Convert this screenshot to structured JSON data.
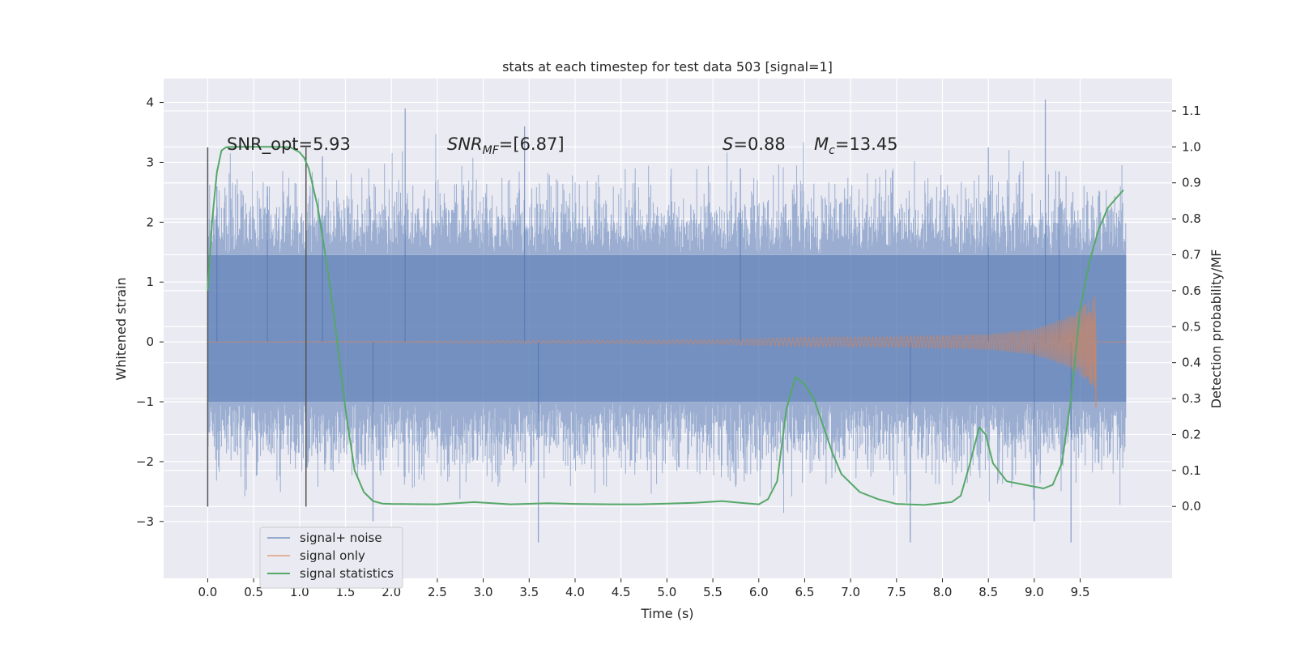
{
  "chart_data": {
    "type": "line",
    "title": "stats at each timestep for test data 503 [signal=1]",
    "xlabel": "Time (s)",
    "ylabel": "Whitened strain",
    "y2label": "Detection probability/MF",
    "xlim": [
      -0.48,
      10.5
    ],
    "ylim": [
      -3.95,
      4.4
    ],
    "y2lim": [
      -0.2,
      1.19
    ],
    "x_ticks": [
      "0.0",
      "0.5",
      "1.0",
      "1.5",
      "2.0",
      "2.5",
      "3.0",
      "3.5",
      "4.0",
      "4.5",
      "5.0",
      "5.5",
      "6.0",
      "6.5",
      "7.0",
      "7.5",
      "8.0",
      "8.5",
      "9.0",
      "9.5"
    ],
    "y_ticks": [
      "−3",
      "−2",
      "−1",
      "0",
      "1",
      "2",
      "3",
      "4"
    ],
    "y2_ticks": [
      "0.0",
      "0.1",
      "0.2",
      "0.3",
      "0.4",
      "0.5",
      "0.6",
      "0.7",
      "0.8",
      "0.9",
      "1.0",
      "1.1"
    ],
    "grid": true,
    "legend_position": "lower-left",
    "colors": {
      "background": "#eaeaf2",
      "noise": "#4c72b0",
      "signal": "#dd8452",
      "stats": "#55a868",
      "vline": "#555555"
    },
    "annotations": {
      "snr_opt": "SNR_opt=5.93",
      "snr_mf_main": "SNR",
      "snr_mf_sub": "MF",
      "snr_mf_val": "=[6.87]",
      "s_main": "S",
      "s_val": "=0.88",
      "mc_main": "M",
      "mc_sub": "c",
      "mc_val": "=13.45"
    },
    "vlines": [
      0.0,
      1.07
    ],
    "series": [
      {
        "name": "signal+ noise",
        "envelope": {
          "dense_band": [
            -1.0,
            1.45
          ],
          "typical_peaks": [
            -2.5,
            2.9
          ],
          "extreme_peaks": [
            [
              0.1,
              2.6
            ],
            [
              0.65,
              2.6
            ],
            [
              1.25,
              3.1
            ],
            [
              2.15,
              3.9
            ],
            [
              3.45,
              3.6
            ],
            [
              5.8,
              2.9
            ],
            [
              8.5,
              3.25
            ],
            [
              9.12,
              4.05
            ],
            [
              9.27,
              2.85
            ],
            [
              1.8,
              -3.0
            ],
            [
              3.6,
              -3.35
            ],
            [
              7.65,
              -3.35
            ],
            [
              9.0,
              -3.0
            ],
            [
              9.4,
              -3.35
            ]
          ]
        }
      },
      {
        "name": "signal only",
        "amplitude_envelope": [
          [
            0.0,
            0.0
          ],
          [
            5.5,
            0.04
          ],
          [
            6.5,
            0.08
          ],
          [
            7.5,
            0.09
          ],
          [
            8.5,
            0.13
          ],
          [
            9.0,
            0.22
          ],
          [
            9.3,
            0.38
          ],
          [
            9.5,
            0.55
          ],
          [
            9.6,
            0.7
          ],
          [
            9.67,
            0.8
          ],
          [
            9.69,
            0.0
          ],
          [
            10.0,
            0.0
          ]
        ],
        "dips": [
          [
            9.67,
            -1.1
          ]
        ]
      },
      {
        "name": "signal statistics",
        "x": [
          0.0,
          0.05,
          0.1,
          0.15,
          0.2,
          0.3,
          0.5,
          0.7,
          0.9,
          1.0,
          1.05,
          1.1,
          1.2,
          1.3,
          1.4,
          1.5,
          1.6,
          1.7,
          1.8,
          1.9,
          2.0,
          2.5,
          2.9,
          3.3,
          3.7,
          4.0,
          4.4,
          4.7,
          5.0,
          5.3,
          5.6,
          5.8,
          6.0,
          6.1,
          6.2,
          6.3,
          6.4,
          6.5,
          6.6,
          6.8,
          6.9,
          7.1,
          7.3,
          7.5,
          7.8,
          8.1,
          8.2,
          8.3,
          8.4,
          8.47,
          8.55,
          8.7,
          8.9,
          9.1,
          9.2,
          9.3,
          9.4,
          9.5,
          9.6,
          9.7,
          9.8,
          9.9,
          9.97
        ],
        "values": [
          0.6,
          0.8,
          0.93,
          0.99,
          0.999,
          1.0,
          1.0,
          1.0,
          0.999,
          0.985,
          0.97,
          0.94,
          0.83,
          0.67,
          0.48,
          0.27,
          0.1,
          0.04,
          0.015,
          0.008,
          0.007,
          0.006,
          0.012,
          0.006,
          0.009,
          0.007,
          0.006,
          0.006,
          0.008,
          0.01,
          0.015,
          0.01,
          0.006,
          0.02,
          0.07,
          0.27,
          0.36,
          0.34,
          0.3,
          0.15,
          0.09,
          0.04,
          0.02,
          0.007,
          0.004,
          0.012,
          0.03,
          0.12,
          0.22,
          0.2,
          0.12,
          0.07,
          0.06,
          0.05,
          0.06,
          0.12,
          0.3,
          0.55,
          0.68,
          0.77,
          0.83,
          0.86,
          0.88
        ]
      }
    ]
  }
}
